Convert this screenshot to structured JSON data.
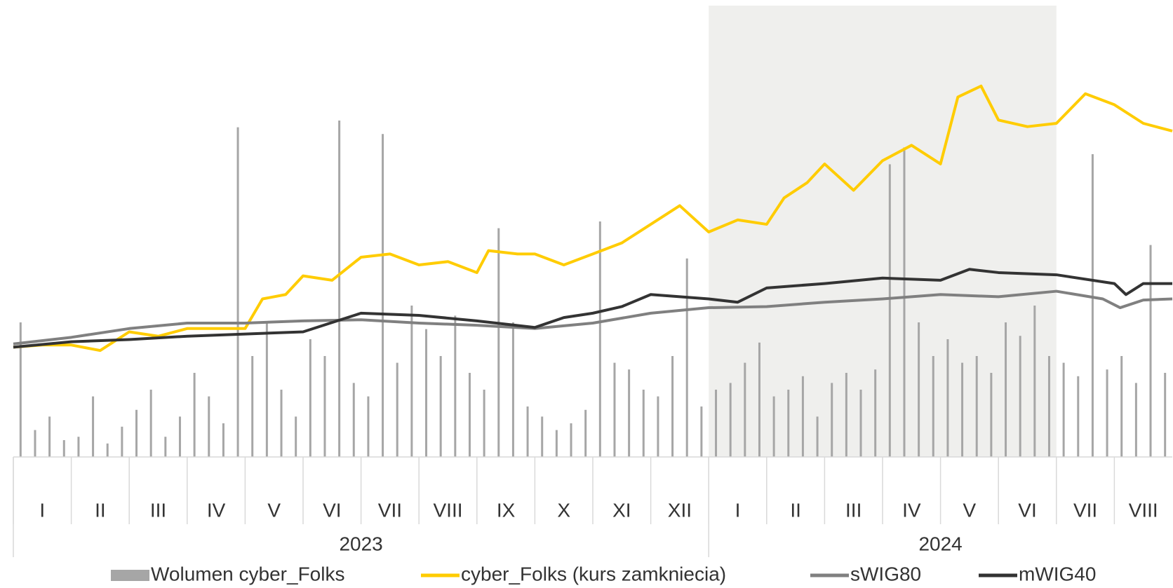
{
  "chart_data": {
    "type": "line",
    "months": [
      "I",
      "II",
      "III",
      "IV",
      "V",
      "VI",
      "VII",
      "VIII",
      "IX",
      "X",
      "XI",
      "XII",
      "I",
      "II",
      "III",
      "IV",
      "V",
      "VI",
      "VII",
      "VIII"
    ],
    "years": [
      {
        "label": "2023",
        "start": 0,
        "end": 12
      },
      {
        "label": "2024",
        "start": 12,
        "end": 20
      }
    ],
    "highlight": [
      12,
      18
    ],
    "xlim": [
      0,
      20
    ],
    "ylim": [
      0,
      380
    ],
    "y2lim": [
      0,
      100
    ],
    "series": [
      {
        "name": "Wolumen cyber_Folks",
        "color": "#a6a6a6",
        "kind": "bar",
        "axis": "y2",
        "values": [
          40,
          8,
          12,
          5,
          6,
          18,
          4,
          9,
          14,
          20,
          6,
          12,
          25,
          18,
          10,
          98,
          30,
          40,
          20,
          12,
          35,
          30,
          100,
          22,
          18,
          96,
          28,
          45,
          38,
          30,
          42,
          25,
          20,
          68,
          40,
          15,
          12,
          8,
          10,
          14,
          70,
          28,
          26,
          20,
          18,
          30,
          59,
          15,
          20,
          22,
          28,
          34,
          18,
          20,
          24,
          12,
          22,
          25,
          20,
          26,
          87,
          92,
          40,
          30,
          35,
          28,
          30,
          25,
          40,
          36,
          45,
          30,
          28,
          24,
          90,
          26,
          30,
          22,
          63,
          25
        ]
      },
      {
        "name": "cyber_Folks (kurs zamkniecia)",
        "color": "#ffcc00",
        "kind": "line",
        "x": [
          0,
          0.5,
          1,
          1.5,
          2,
          2.5,
          3,
          3.5,
          4,
          4.3,
          4.7,
          5,
          5.5,
          6,
          6.5,
          7,
          7.5,
          8,
          8.2,
          8.7,
          9,
          9.5,
          10,
          10.5,
          11,
          11.5,
          12,
          12.5,
          13,
          13.3,
          13.7,
          14,
          14.5,
          15,
          15.5,
          16,
          16.3,
          16.7,
          17,
          17.5,
          18,
          18.5,
          19,
          19.5,
          20
        ],
        "values": [
          100,
          102,
          102,
          97,
          114,
          110,
          117,
          117,
          117,
          144,
          148,
          165,
          161,
          182,
          185,
          175,
          178,
          168,
          188,
          185,
          185,
          175,
          185,
          195,
          212,
          229,
          205,
          216,
          212,
          236,
          250,
          267,
          243,
          270,
          284,
          267,
          328,
          338,
          307,
          301,
          304,
          331,
          321,
          304,
          297
        ]
      },
      {
        "name": "sWIG80",
        "color": "#808080",
        "kind": "line",
        "x": [
          0,
          1,
          2,
          3,
          4,
          5,
          6,
          7,
          8,
          9,
          10,
          11,
          12,
          13,
          14,
          15,
          16,
          17,
          18,
          18.8,
          19.1,
          19.5,
          20
        ],
        "values": [
          103,
          109,
          117,
          122,
          122,
          124,
          125,
          122,
          120,
          117,
          122,
          131,
          136,
          137,
          141,
          144,
          148,
          146,
          151,
          144,
          136,
          143,
          144
        ]
      },
      {
        "name": "mWIG40",
        "color": "#333333",
        "kind": "line",
        "x": [
          0,
          1,
          2,
          3,
          4,
          5,
          6,
          7,
          8,
          9,
          9.5,
          10,
          10.5,
          11,
          12,
          12.5,
          13,
          14,
          15,
          16,
          16.5,
          17,
          18,
          19,
          19.2,
          19.5,
          20
        ],
        "values": [
          100,
          105,
          107,
          110,
          112,
          114,
          131,
          129,
          124,
          118,
          127,
          131,
          137,
          148,
          144,
          141,
          154,
          158,
          163,
          161,
          171,
          168,
          166,
          158,
          148,
          158,
          158
        ]
      }
    ]
  }
}
